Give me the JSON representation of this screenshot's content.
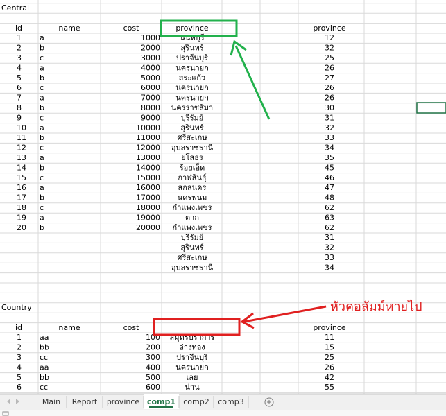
{
  "sheet": {
    "sections": [
      {
        "title": "Central",
        "header": [
          "id",
          "name",
          "cost",
          "province",
          "province"
        ],
        "rows": [
          [
            1,
            "a",
            1000,
            "นนทบุรี",
            12
          ],
          [
            2,
            "b",
            2000,
            "สุรินทร์",
            32
          ],
          [
            3,
            "c",
            3000,
            "ปราจีนบุรี",
            25
          ],
          [
            4,
            "a",
            4000,
            "นครนายก",
            26
          ],
          [
            5,
            "b",
            5000,
            "สระแก้ว",
            27
          ],
          [
            6,
            "c",
            6000,
            "นครนายก",
            26
          ],
          [
            7,
            "a",
            7000,
            "นครนายก",
            26
          ],
          [
            8,
            "b",
            8000,
            "นครราชสีมา",
            30
          ],
          [
            9,
            "c",
            9000,
            "บุรีรัมย์",
            31
          ],
          [
            10,
            "a",
            10000,
            "สุรินทร์",
            32
          ],
          [
            11,
            "b",
            11000,
            "ศรีสะเกษ",
            33
          ],
          [
            12,
            "c",
            12000,
            "อุบลราชธานี",
            34
          ],
          [
            13,
            "a",
            13000,
            "ยโสธร",
            35
          ],
          [
            14,
            "b",
            14000,
            "ร้อยเอ็ด",
            45
          ],
          [
            15,
            "c",
            15000,
            "กาฬสินธุ์",
            46
          ],
          [
            16,
            "a",
            16000,
            "สกลนคร",
            47
          ],
          [
            17,
            "b",
            17000,
            "นครพนม",
            48
          ],
          [
            18,
            "c",
            18000,
            "กำแพงเพชร",
            62
          ],
          [
            19,
            "a",
            19000,
            "ตาก",
            63
          ],
          [
            20,
            "b",
            20000,
            "กำแพงเพชร",
            62
          ]
        ],
        "extra_rows": [
          [
            "บุรีรัมย์",
            31
          ],
          [
            "สุรินทร์",
            32
          ],
          [
            "ศรีสะเกษ",
            33
          ],
          [
            "อุบลราชธานี",
            34
          ]
        ]
      },
      {
        "title": "Country",
        "header": [
          "id",
          "name",
          "cost",
          null,
          "province"
        ],
        "rows": [
          [
            1,
            "aa",
            100,
            "สมุทรปราการ",
            11
          ],
          [
            2,
            "bb",
            200,
            "อ่างทอง",
            15
          ],
          [
            3,
            "cc",
            300,
            "ปราจีนบุรี",
            25
          ],
          [
            4,
            "aa",
            400,
            "นครนายก",
            26
          ],
          [
            5,
            "bb",
            500,
            "เลย",
            42
          ],
          [
            6,
            "cc",
            600,
            "น่าน",
            55
          ]
        ],
        "extra_rows": []
      }
    ],
    "annotation": "หัวคอลัมม์หายไป",
    "tabs": [
      "Main",
      "Report",
      "province",
      "comp1",
      "comp2",
      "comp3"
    ],
    "active_tab": 3
  }
}
